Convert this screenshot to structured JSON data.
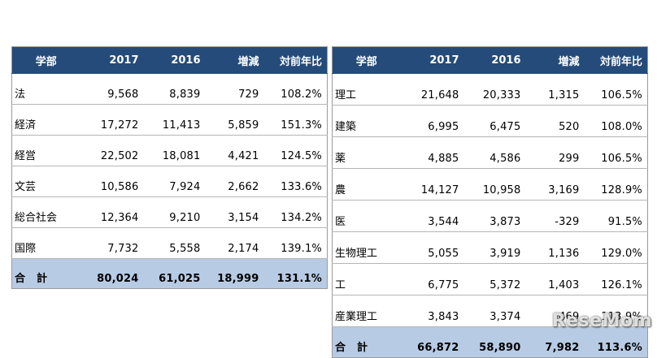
{
  "left_table": {
    "headers": [
      "学部",
      "2017",
      "2016",
      "増減",
      "対前年比"
    ],
    "rows": [
      [
        "法",
        "9,568",
        "8,839",
        "729",
        "108.2%"
      ],
      [
        "経済",
        "17,272",
        "11,413",
        "5,859",
        "151.3%"
      ],
      [
        "経営",
        "22,502",
        "18,081",
        "4,421",
        "124.5%"
      ],
      [
        "文芸",
        "10,586",
        "7,924",
        "2,662",
        "133.6%"
      ],
      [
        "総合社会",
        "12,364",
        "9,210",
        "3,154",
        "134.2%"
      ],
      [
        "国際",
        "7,732",
        "5,558",
        "2,174",
        "139.1%"
      ]
    ],
    "total": [
      "合計",
      "80,024",
      "61,025",
      "18,999",
      "131.1%"
    ]
  },
  "right_table": {
    "headers": [
      "学部",
      "2017",
      "2016",
      "増減",
      "対前年比"
    ],
    "rows": [
      [
        "理工",
        "21,648",
        "20,333",
        "1,315",
        "106.5%"
      ],
      [
        "建築",
        "6,995",
        "6,475",
        "520",
        "108.0%"
      ],
      [
        "薬",
        "4,885",
        "4,586",
        "299",
        "106.5%"
      ],
      [
        "農",
        "14,127",
        "10,958",
        "3,169",
        "128.9%"
      ],
      [
        "医",
        "3,544",
        "3,873",
        "-329",
        "91.5%"
      ],
      [
        "生物理工",
        "5,055",
        "3,919",
        "1,136",
        "129.0%"
      ],
      [
        "工",
        "6,775",
        "5,372",
        "1,403",
        "126.1%"
      ],
      [
        "産業理工",
        "3,843",
        "3,374",
        "469",
        "113.9%"
      ]
    ],
    "total": [
      "合計",
      "66,872",
      "58,890",
      "7,982",
      "113.6%"
    ]
  },
  "watermark": "ReseMom"
}
